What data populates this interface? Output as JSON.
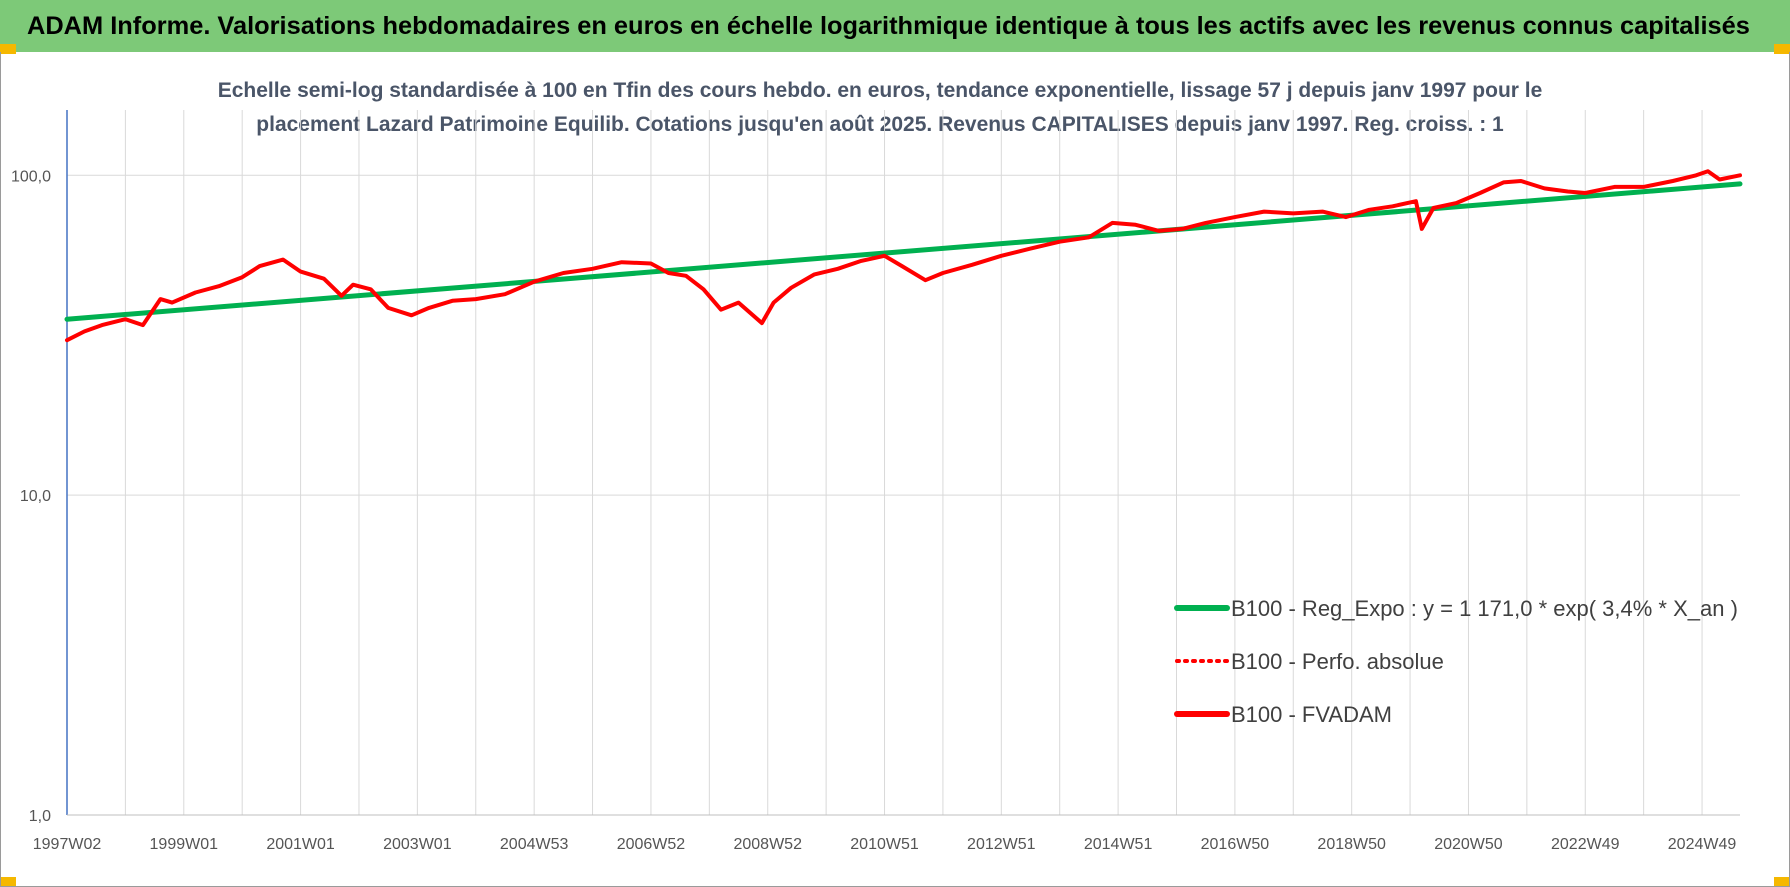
{
  "header": {
    "title": "ADAM Informe. Valorisations hebdomadaires en euros en échelle logarithmique identique à tous les actifs avec les revenus connus capitalisés"
  },
  "colors": {
    "banner": "#7dc978",
    "accent_corner": "#f5b800",
    "trend": "#00b050",
    "series": "#ff0000",
    "grid": "#d9d9d9",
    "axis": "#4472c4"
  },
  "chart_data": {
    "type": "line",
    "title_lines": [
      "Echelle semi-log standardisée à 100 en Tfin des cours hebdo. en euros, tendance exponentielle, lissage 57 j depuis janv 1997 pour le",
      "placement Lazard Patrimoine Equilib. Cotations jusqu'en août 2025. Revenus CAPITALISES depuis janv 1997. Reg. croiss. : 1"
    ],
    "y_scale": "log",
    "ylim": [
      1,
      160
    ],
    "y_ticks": [
      "1,0",
      "10,0",
      "100,0"
    ],
    "y_tick_values": [
      1,
      10,
      100
    ],
    "x_range": [
      1997.0,
      2025.65
    ],
    "x_tick_labels": [
      "1997W02",
      "1999W01",
      "2001W01",
      "2003W01",
      "2004W53",
      "2006W52",
      "2008W52",
      "2010W51",
      "2012W51",
      "2014W51",
      "2016W50",
      "2018W50",
      "2020W50",
      "2022W49",
      "2024W49"
    ],
    "x_tick_years": [
      1997.0,
      1999.0,
      2001.0,
      2003.0,
      2005.0,
      2007.0,
      2009.0,
      2011.0,
      2013.0,
      2015.0,
      2017.0,
      2019.0,
      2021.0,
      2023.0,
      2025.0
    ],
    "grid": true,
    "legend_position": "lower-right",
    "legend": [
      "B100 - Reg_Expo : y = 1 171,0 * exp( 3,4% *  X_an )",
      "B100 - Perfo. absolue",
      "B100 - FVADAM"
    ],
    "series": [
      {
        "name": "B100 - Reg_Expo : y = 1 171,0 * exp( 3,4% *  X_an )",
        "style": "trend",
        "x": [
          1997.0,
          2025.65
        ],
        "values": [
          35.5,
          94
        ]
      },
      {
        "name": "B100 - FVADAM",
        "style": "solid",
        "x": [
          1997.0,
          1997.3,
          1997.6,
          1998.0,
          1998.3,
          1998.6,
          1998.8,
          1999.2,
          1999.6,
          2000.0,
          2000.3,
          2000.7,
          2001.0,
          2001.4,
          2001.7,
          2001.9,
          2002.2,
          2002.5,
          2002.9,
          2003.2,
          2003.6,
          2004.0,
          2004.5,
          2005.0,
          2005.5,
          2006.0,
          2006.5,
          2007.0,
          2007.3,
          2007.6,
          2007.9,
          2008.2,
          2008.5,
          2008.9,
          2009.1,
          2009.4,
          2009.8,
          2010.2,
          2010.6,
          2011.0,
          2011.3,
          2011.7,
          2012.0,
          2012.5,
          2013.0,
          2013.5,
          2014.0,
          2014.5,
          2014.9,
          2015.3,
          2015.7,
          2016.1,
          2016.5,
          2017.0,
          2017.5,
          2018.0,
          2018.5,
          2018.9,
          2019.3,
          2019.7,
          2020.1,
          2020.2,
          2020.4,
          2020.8,
          2021.2,
          2021.6,
          2021.9,
          2022.3,
          2022.7,
          2023.0,
          2023.5,
          2024.0,
          2024.5,
          2024.9,
          2025.1,
          2025.3,
          2025.65
        ],
        "values": [
          30.5,
          32.5,
          34.0,
          35.5,
          34.0,
          41.0,
          40.0,
          43.0,
          45.0,
          48.0,
          52.0,
          54.5,
          50.0,
          47.5,
          42.0,
          45.5,
          44.0,
          38.5,
          36.5,
          38.5,
          40.5,
          41.0,
          42.5,
          46.5,
          49.5,
          51.0,
          53.5,
          53.0,
          49.5,
          48.5,
          44.0,
          38.0,
          40.0,
          34.5,
          40.0,
          44.5,
          49.0,
          51.0,
          54.0,
          56.0,
          52.0,
          47.0,
          49.5,
          52.5,
          56.0,
          59.0,
          62.0,
          64.0,
          71.0,
          70.0,
          67.0,
          68.0,
          71.0,
          74.0,
          77.0,
          76.0,
          77.0,
          74.0,
          78.0,
          80.0,
          83.0,
          68.0,
          79.0,
          82.0,
          88.0,
          95.0,
          96.0,
          91.0,
          89.0,
          88.0,
          92.0,
          92.0,
          96.0,
          100.0,
          103.0,
          97.0,
          100.0
        ]
      },
      {
        "name": "B100 - Perfo. absolue",
        "style": "dotted",
        "x": [
          1997.0,
          1997.3,
          1997.6,
          1998.0,
          1998.3,
          1998.6,
          1998.8,
          1999.2,
          1999.6,
          2000.0,
          2000.3,
          2000.7,
          2001.0,
          2001.4,
          2001.7,
          2001.9,
          2002.2,
          2002.5,
          2002.9,
          2003.2,
          2003.6,
          2004.0,
          2004.5,
          2005.0,
          2005.5,
          2006.0,
          2006.5,
          2007.0,
          2007.3,
          2007.6,
          2007.9,
          2008.2,
          2008.5,
          2008.9,
          2009.1,
          2009.4,
          2009.8,
          2010.2,
          2010.6,
          2011.0,
          2011.3,
          2011.7,
          2012.0,
          2012.5,
          2013.0,
          2013.5,
          2014.0,
          2014.5,
          2014.9,
          2015.3,
          2015.7,
          2016.1,
          2016.5,
          2017.0,
          2017.5,
          2018.0,
          2018.5,
          2018.9,
          2019.3,
          2019.7,
          2020.1,
          2020.2,
          2020.4,
          2020.8,
          2021.2,
          2021.6,
          2021.9,
          2022.3,
          2022.7,
          2023.0,
          2023.5,
          2024.0,
          2024.5,
          2024.9,
          2025.1,
          2025.3,
          2025.65
        ],
        "values": [
          30.5,
          32.5,
          34.0,
          35.5,
          34.0,
          41.0,
          40.0,
          43.0,
          45.0,
          48.0,
          52.0,
          54.5,
          50.0,
          47.5,
          42.0,
          45.5,
          44.0,
          38.5,
          36.5,
          38.5,
          40.5,
          41.0,
          42.5,
          46.5,
          49.5,
          51.0,
          53.5,
          53.0,
          49.5,
          48.5,
          44.0,
          38.0,
          40.0,
          34.5,
          40.0,
          44.5,
          49.0,
          51.0,
          54.0,
          56.0,
          52.0,
          47.0,
          49.5,
          52.5,
          56.0,
          59.0,
          62.0,
          64.0,
          71.0,
          70.0,
          67.0,
          68.0,
          71.0,
          74.0,
          77.0,
          76.0,
          77.0,
          74.0,
          78.0,
          80.0,
          83.0,
          68.0,
          79.0,
          82.0,
          88.0,
          95.0,
          96.0,
          91.0,
          89.0,
          88.0,
          92.0,
          92.0,
          96.0,
          100.0,
          103.0,
          97.0,
          100.0
        ]
      }
    ]
  }
}
